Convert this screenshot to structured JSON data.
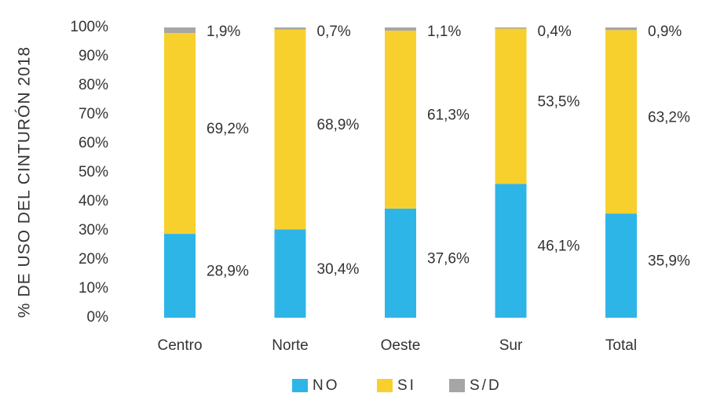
{
  "chart_data": {
    "type": "stacked-bar",
    "y_axis_label": "% DE USO DEL CINTURÓN 2018",
    "categories": [
      "Centro",
      "Norte",
      "Oeste",
      "Sur",
      "Total"
    ],
    "series": [
      {
        "name": "NO",
        "color": "#2eb5e8",
        "values": [
          28.9,
          30.4,
          37.6,
          46.1,
          35.9
        ],
        "value_labels": [
          "28,9%",
          "30,4%",
          "37,6%",
          "46,1%",
          "35,9%"
        ]
      },
      {
        "name": "SI",
        "color": "#f7d02e",
        "values": [
          69.2,
          68.9,
          61.3,
          53.5,
          63.2
        ],
        "value_labels": [
          "69,2%",
          "68,9%",
          "61,3%",
          "53,5%",
          "63,2%"
        ]
      },
      {
        "name": "S/D",
        "color": "#a6a6a6",
        "values": [
          1.9,
          0.7,
          1.1,
          0.4,
          0.9
        ],
        "value_labels": [
          "1,9%",
          "0,7%",
          "1,1%",
          "0,4%",
          "0,9%"
        ]
      }
    ],
    "ylim": [
      0,
      100
    ],
    "yticks": [
      {
        "value": 0,
        "label": "0%"
      },
      {
        "value": 10,
        "label": "10%"
      },
      {
        "value": 20,
        "label": "20%"
      },
      {
        "value": 30,
        "label": "30%"
      },
      {
        "value": 40,
        "label": "40%"
      },
      {
        "value": 50,
        "label": "50%"
      },
      {
        "value": 60,
        "label": "60%"
      },
      {
        "value": 70,
        "label": "70%"
      },
      {
        "value": 80,
        "label": "80%"
      },
      {
        "value": 90,
        "label": "90%"
      },
      {
        "value": 100,
        "label": "100%"
      }
    ],
    "legend": "bottom"
  }
}
